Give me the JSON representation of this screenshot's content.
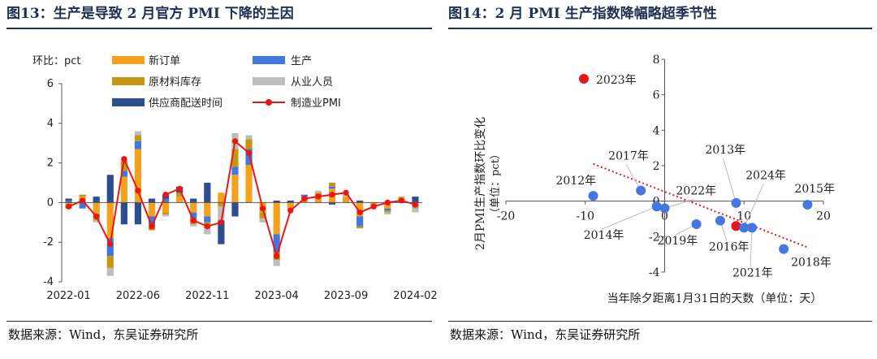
{
  "left": {
    "title": "图13：生产是导致 2 月官方 PMI 下降的主因",
    "source": "数据来源：Wind，东吴证券研究所",
    "legend": {
      "unit": "环比：pct",
      "new_orders": "新订单",
      "production": "生产",
      "raw_inventory": "原材料库存",
      "employment": "从业人员",
      "delivery": "供应商配送时间",
      "pmi": "制造业PMI"
    },
    "colors": {
      "new_orders": "#f6a11c",
      "production": "#3f79e0",
      "raw_inventory": "#c49612",
      "employment": "#bdbdbd",
      "delivery": "#2e4d8f",
      "pmi": "#e81616"
    }
  },
  "right": {
    "title": "图14：2 月 PMI 生产指数降幅略超季节性",
    "source": "数据来源：Wind，东吴证券研究所",
    "ylabel_main": "2月PMI生产指数环比变化",
    "ylabel_unit": "（单位：pct）",
    "xlabel": "当年除夕距离1月31日的天数（单位：天）",
    "legend_2023": "2023年",
    "colors": {
      "point": "#4676df",
      "highlight": "#e81616",
      "trend": "#e81616"
    }
  },
  "chart_data": [
    {
      "type": "bar",
      "stacked": true,
      "categories": [
        "2022-01",
        "2022-02",
        "2022-03",
        "2022-04",
        "2022-05",
        "2022-06",
        "2022-07",
        "2022-08",
        "2022-09",
        "2022-10",
        "2022-11",
        "2022-12",
        "2023-01",
        "2023-02",
        "2023-03",
        "2023-04",
        "2023-05",
        "2023-06",
        "2023-07",
        "2023-08",
        "2023-09",
        "2023-10",
        "2023-11",
        "2023-12",
        "2024-01",
        "2024-02"
      ],
      "tick_labels": [
        "2022-01",
        "2022-06",
        "2022-11",
        "2023-04",
        "2023-09",
        "2024-02"
      ],
      "ylim": [
        -4,
        6
      ],
      "yticks": [
        -4,
        -2,
        0,
        2,
        4,
        6
      ],
      "ylabel": "环比：pct",
      "series": [
        {
          "name": "新订单",
          "key": "new_orders",
          "values": [
            -0.1,
            0.3,
            -0.6,
            -1.8,
            1.3,
            2.7,
            -0.7,
            -0.5,
            0.3,
            -0.5,
            -0.7,
            0.5,
            1.4,
            1.9,
            -0.5,
            -1.6,
            -0.3,
            0.3,
            0.3,
            0.7,
            0.3,
            -0.7,
            -0.2,
            -0.3,
            0.3,
            -0.1
          ]
        },
        {
          "name": "生产",
          "key": "production",
          "values": [
            0.1,
            -0.3,
            -0.1,
            -0.9,
            0.3,
            0.4,
            -0.4,
            0.2,
            0.0,
            -0.3,
            -0.3,
            0.0,
            0.4,
            0.8,
            0.0,
            -0.9,
            0.0,
            0.1,
            0.0,
            0.1,
            0.0,
            -0.5,
            0.0,
            -0.1,
            0.0,
            -0.1
          ]
        },
        {
          "name": "原材料库存",
          "key": "raw_inventory",
          "values": [
            -0.2,
            0.1,
            -0.2,
            -0.6,
            0.5,
            0.3,
            -0.3,
            -0.1,
            0.2,
            -0.3,
            -0.3,
            -0.2,
            0.9,
            0.5,
            -0.3,
            -0.4,
            0.0,
            0.0,
            0.2,
            0.2,
            0.0,
            -0.1,
            0.0,
            -0.1,
            0.0,
            -0.1
          ]
        },
        {
          "name": "从业人员",
          "key": "employment",
          "values": [
            0.0,
            0.0,
            -0.1,
            -0.4,
            0.1,
            0.2,
            0.0,
            -0.1,
            0.0,
            -0.1,
            -0.3,
            -0.7,
            0.8,
            0.2,
            -0.2,
            -0.3,
            -0.1,
            0.0,
            0.1,
            0.0,
            0.1,
            0.0,
            0.0,
            -0.1,
            0.0,
            -0.2
          ]
        },
        {
          "name": "供应商配送时间",
          "key": "delivery",
          "values": [
            0.1,
            0.0,
            0.3,
            1.4,
            -1.1,
            -1.1,
            0.2,
            0.2,
            0.3,
            0.2,
            1.0,
            -1.2,
            -0.7,
            0.0,
            0.0,
            0.1,
            0.1,
            0.0,
            0.0,
            -0.1,
            0.0,
            0.1,
            0.0,
            0.0,
            0.0,
            0.3
          ]
        },
        {
          "name": "制造业PMI",
          "key": "pmi",
          "type": "line",
          "values": [
            -0.2,
            0.1,
            -0.7,
            -2.1,
            2.2,
            0.6,
            -1.2,
            0.4,
            0.7,
            -0.9,
            -1.2,
            -1.0,
            3.1,
            2.5,
            -0.3,
            -2.7,
            -0.4,
            0.2,
            0.3,
            0.4,
            0.5,
            -0.5,
            -0.2,
            0.0,
            0.1,
            -0.1
          ]
        }
      ]
    },
    {
      "type": "scatter",
      "xlim": [
        -20,
        20
      ],
      "ylim": [
        -4,
        8
      ],
      "xticks": [
        -20,
        -10,
        0,
        10,
        20
      ],
      "yticks": [
        -4,
        -2,
        0,
        2,
        4,
        6,
        8
      ],
      "xlabel": "当年除夕距离1月31日的天数（单位：天）",
      "ylabel": "2月PMI生产指数环比变化（单位：pct）",
      "points": [
        {
          "label": "2012年",
          "x": -9,
          "y": 0.3
        },
        {
          "label": "2013年",
          "x": 9,
          "y": -0.1
        },
        {
          "label": "2014年",
          "x": -1,
          "y": -0.3
        },
        {
          "label": "2015年",
          "x": 18,
          "y": -0.2
        },
        {
          "label": "2016年",
          "x": 7,
          "y": -1.1
        },
        {
          "label": "2017年",
          "x": -3,
          "y": 0.6
        },
        {
          "label": "2018年",
          "x": 15,
          "y": -2.7
        },
        {
          "label": "2019年",
          "x": 4,
          "y": -1.3
        },
        {
          "label": "2021年",
          "x": 11,
          "y": -1.5
        },
        {
          "label": "2022年",
          "x": 0,
          "y": -0.4
        },
        {
          "label": "2023年",
          "x": 9,
          "y": -1.4,
          "highlight": true
        },
        {
          "label": "2024年",
          "x": 10,
          "y": -1.5
        }
      ],
      "trendline": {
        "style": "dotted",
        "x": [
          -9,
          18
        ],
        "y": [
          2.1,
          -2.6
        ]
      }
    }
  ]
}
